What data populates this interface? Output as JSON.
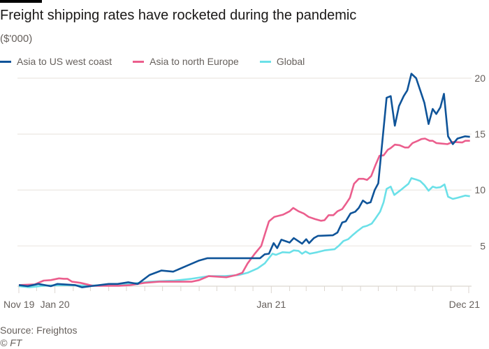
{
  "title": "Freight shipping rates have rocketed during the pandemic",
  "subtitle": "($'000)",
  "source": "Source: Freightos",
  "copyright": "© FT",
  "chart_data": {
    "type": "line",
    "title": "Freight shipping rates have rocketed during the pandemic",
    "ylabel": "($'000)",
    "xlabel": "",
    "ylim": [
      1.4,
      21
    ],
    "xlim": [
      "2019-11-01",
      "2021-12-01"
    ],
    "yticks": [
      5,
      10,
      15,
      20
    ],
    "xtick_labels": [
      {
        "date": "2019-11-01",
        "label": "Nov 19"
      },
      {
        "date": "2020-01-01",
        "label": "Jan 20"
      },
      {
        "date": "2021-01-01",
        "label": "Jan 21"
      },
      {
        "date": "2021-12-01",
        "label": "Dec 21"
      }
    ],
    "grid": "horizontal",
    "legend": "top",
    "y_axis_side": "right",
    "series": [
      {
        "name": "Asia to US west coast",
        "color": "#0f5499",
        "points": [
          [
            "2019-11-01",
            1.5
          ],
          [
            "2019-11-16",
            1.4
          ],
          [
            "2019-12-04",
            1.6
          ],
          [
            "2019-12-25",
            1.4
          ],
          [
            "2020-01-05",
            1.6
          ],
          [
            "2020-02-04",
            1.5
          ],
          [
            "2020-02-16",
            1.3
          ],
          [
            "2020-03-01",
            1.4
          ],
          [
            "2020-04-01",
            1.6
          ],
          [
            "2020-04-16",
            1.6
          ],
          [
            "2020-05-04",
            1.75
          ],
          [
            "2020-05-20",
            1.6
          ],
          [
            "2020-06-09",
            2.4
          ],
          [
            "2020-06-29",
            2.8
          ],
          [
            "2020-07-19",
            2.7
          ],
          [
            "2020-08-12",
            3.25
          ],
          [
            "2020-09-01",
            3.7
          ],
          [
            "2020-09-15",
            3.9
          ],
          [
            "2020-10-07",
            3.9
          ],
          [
            "2020-12-13",
            3.9
          ],
          [
            "2020-12-21",
            4.25
          ],
          [
            "2020-12-28",
            4.3
          ],
          [
            "2021-01-05",
            5.25
          ],
          [
            "2021-01-11",
            4.8
          ],
          [
            "2021-01-18",
            5.56
          ],
          [
            "2021-02-01",
            5.3
          ],
          [
            "2021-02-08",
            5.7
          ],
          [
            "2021-02-22",
            5.2
          ],
          [
            "2021-03-01",
            5.6
          ],
          [
            "2021-03-06",
            5.25
          ],
          [
            "2021-03-14",
            5.7
          ],
          [
            "2021-03-21",
            5.9
          ],
          [
            "2021-04-15",
            5.95
          ],
          [
            "2021-04-23",
            6.2
          ],
          [
            "2021-05-01",
            7.1
          ],
          [
            "2021-05-07",
            7.2
          ],
          [
            "2021-05-15",
            7.9
          ],
          [
            "2021-05-23",
            8.06
          ],
          [
            "2021-05-29",
            8.4
          ],
          [
            "2021-06-05",
            9.06
          ],
          [
            "2021-06-12",
            8.8
          ],
          [
            "2021-06-18",
            8.9
          ],
          [
            "2021-06-25",
            10.0
          ],
          [
            "2021-07-01",
            10.6
          ],
          [
            "2021-07-15",
            18.25
          ],
          [
            "2021-07-22",
            18.4
          ],
          [
            "2021-07-29",
            15.75
          ],
          [
            "2021-08-05",
            17.5
          ],
          [
            "2021-08-13",
            18.4
          ],
          [
            "2021-08-19",
            18.9
          ],
          [
            "2021-08-26",
            20.4
          ],
          [
            "2021-09-03",
            20.0
          ],
          [
            "2021-09-10",
            18.9
          ],
          [
            "2021-09-17",
            17.8
          ],
          [
            "2021-09-24",
            15.9
          ],
          [
            "2021-10-01",
            17.25
          ],
          [
            "2021-10-07",
            16.8
          ],
          [
            "2021-10-14",
            17.4
          ],
          [
            "2021-10-20",
            18.6
          ],
          [
            "2021-10-27",
            14.8
          ],
          [
            "2021-11-04",
            14.1
          ],
          [
            "2021-11-12",
            14.6
          ],
          [
            "2021-11-25",
            14.8
          ],
          [
            "2021-12-03",
            14.75
          ]
        ]
      },
      {
        "name": "Asia to north Europe",
        "color": "#eb5e8d",
        "points": [
          [
            "2019-11-01",
            1.5
          ],
          [
            "2019-11-28",
            1.56
          ],
          [
            "2019-12-13",
            1.9
          ],
          [
            "2019-12-25",
            1.94
          ],
          [
            "2020-01-08",
            2.1
          ],
          [
            "2020-01-16",
            2.06
          ],
          [
            "2020-01-22",
            2.06
          ],
          [
            "2020-01-30",
            1.8
          ],
          [
            "2020-02-13",
            1.7
          ],
          [
            "2020-03-05",
            1.44
          ],
          [
            "2020-04-18",
            1.44
          ],
          [
            "2020-05-08",
            1.5
          ],
          [
            "2020-06-01",
            1.7
          ],
          [
            "2020-06-25",
            1.8
          ],
          [
            "2020-08-19",
            1.8
          ],
          [
            "2020-09-01",
            1.94
          ],
          [
            "2020-09-17",
            2.3
          ],
          [
            "2020-10-17",
            2.2
          ],
          [
            "2020-11-03",
            2.4
          ],
          [
            "2020-11-13",
            2.6
          ],
          [
            "2020-11-22",
            3.44
          ],
          [
            "2020-12-04",
            4.3
          ],
          [
            "2020-12-15",
            5.0
          ],
          [
            "2020-12-22",
            6.2
          ],
          [
            "2020-12-28",
            7.2
          ],
          [
            "2021-01-06",
            7.6
          ],
          [
            "2021-01-21",
            7.8
          ],
          [
            "2021-02-01",
            8.1
          ],
          [
            "2021-02-07",
            8.4
          ],
          [
            "2021-02-16",
            8.1
          ],
          [
            "2021-02-25",
            7.9
          ],
          [
            "2021-03-05",
            7.6
          ],
          [
            "2021-03-16",
            7.4
          ],
          [
            "2021-03-26",
            7.25
          ],
          [
            "2021-04-01",
            7.3
          ],
          [
            "2021-04-08",
            7.75
          ],
          [
            "2021-04-16",
            7.75
          ],
          [
            "2021-04-23",
            8.1
          ],
          [
            "2021-05-01",
            8.3
          ],
          [
            "2021-05-07",
            8.75
          ],
          [
            "2021-05-14",
            9.3
          ],
          [
            "2021-05-21",
            10.56
          ],
          [
            "2021-05-29",
            11.0
          ],
          [
            "2021-06-06",
            11.0
          ],
          [
            "2021-06-12",
            10.9
          ],
          [
            "2021-06-19",
            11.25
          ],
          [
            "2021-06-26",
            12.2
          ],
          [
            "2021-07-03",
            13.06
          ],
          [
            "2021-07-10",
            13.1
          ],
          [
            "2021-07-17",
            13.6
          ],
          [
            "2021-07-22",
            13.75
          ],
          [
            "2021-07-29",
            14.06
          ],
          [
            "2021-08-06",
            14.0
          ],
          [
            "2021-08-15",
            13.8
          ],
          [
            "2021-08-21",
            13.8
          ],
          [
            "2021-08-28",
            14.2
          ],
          [
            "2021-09-06",
            14.4
          ],
          [
            "2021-09-12",
            14.56
          ],
          [
            "2021-09-18",
            14.6
          ],
          [
            "2021-09-26",
            14.4
          ],
          [
            "2021-10-01",
            14.4
          ],
          [
            "2021-10-07",
            14.2
          ],
          [
            "2021-10-26",
            14.1
          ],
          [
            "2021-11-04",
            14.3
          ],
          [
            "2021-11-20",
            14.25
          ],
          [
            "2021-11-25",
            14.4
          ],
          [
            "2021-12-03",
            14.4
          ]
        ]
      },
      {
        "name": "Global",
        "color": "#6be0e8",
        "points": [
          [
            "2019-11-01",
            1.4
          ],
          [
            "2019-11-19",
            1.3
          ],
          [
            "2019-12-15",
            1.45
          ],
          [
            "2020-01-15",
            1.5
          ],
          [
            "2020-03-01",
            1.45
          ],
          [
            "2020-04-30",
            1.56
          ],
          [
            "2020-06-08",
            1.8
          ],
          [
            "2020-07-21",
            1.9
          ],
          [
            "2020-08-19",
            2.06
          ],
          [
            "2020-09-17",
            2.3
          ],
          [
            "2020-10-14",
            2.3
          ],
          [
            "2020-11-07",
            2.4
          ],
          [
            "2020-11-22",
            2.6
          ],
          [
            "2020-12-09",
            3.0
          ],
          [
            "2020-12-21",
            3.44
          ],
          [
            "2021-01-03",
            4.3
          ],
          [
            "2021-01-09",
            4.2
          ],
          [
            "2021-01-20",
            4.44
          ],
          [
            "2021-02-01",
            4.4
          ],
          [
            "2021-02-08",
            4.6
          ],
          [
            "2021-02-16",
            4.56
          ],
          [
            "2021-02-22",
            4.3
          ],
          [
            "2021-02-28",
            4.5
          ],
          [
            "2021-03-07",
            4.3
          ],
          [
            "2021-03-20",
            4.44
          ],
          [
            "2021-04-01",
            4.6
          ],
          [
            "2021-04-18",
            4.7
          ],
          [
            "2021-04-25",
            5.0
          ],
          [
            "2021-05-03",
            5.44
          ],
          [
            "2021-05-11",
            5.6
          ],
          [
            "2021-05-18",
            5.94
          ],
          [
            "2021-05-26",
            6.3
          ],
          [
            "2021-06-05",
            6.7
          ],
          [
            "2021-06-12",
            6.8
          ],
          [
            "2021-06-20",
            7.0
          ],
          [
            "2021-06-26",
            7.44
          ],
          [
            "2021-07-04",
            8.06
          ],
          [
            "2021-07-10",
            8.9
          ],
          [
            "2021-07-15",
            10.1
          ],
          [
            "2021-07-22",
            10.3
          ],
          [
            "2021-07-28",
            9.56
          ],
          [
            "2021-08-08",
            10.0
          ],
          [
            "2021-08-15",
            10.3
          ],
          [
            "2021-08-21",
            10.56
          ],
          [
            "2021-08-26",
            11.06
          ],
          [
            "2021-09-03",
            10.94
          ],
          [
            "2021-09-10",
            10.8
          ],
          [
            "2021-09-17",
            10.44
          ],
          [
            "2021-09-24",
            9.94
          ],
          [
            "2021-10-01",
            10.3
          ],
          [
            "2021-10-07",
            10.2
          ],
          [
            "2021-10-14",
            10.25
          ],
          [
            "2021-10-21",
            10.5
          ],
          [
            "2021-10-27",
            9.4
          ],
          [
            "2021-11-04",
            9.2
          ],
          [
            "2021-11-12",
            9.3
          ],
          [
            "2021-11-25",
            9.5
          ],
          [
            "2021-12-03",
            9.44
          ]
        ]
      }
    ]
  }
}
